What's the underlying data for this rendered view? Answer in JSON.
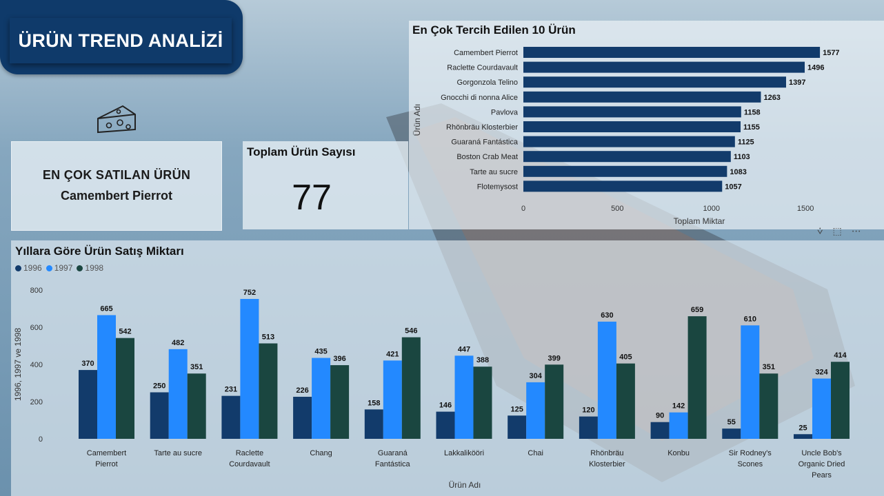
{
  "page": {
    "title": "ÜRÜN TREND ANALİZİ"
  },
  "best_seller": {
    "label": "EN ÇOK SATILAN ÜRÜN",
    "value": "Camembert Pierrot"
  },
  "product_count": {
    "label": "Toplam Ürün Sayısı",
    "value": "77"
  },
  "icons": {
    "cheese": "cheese-icon",
    "filter": "filter-icon",
    "focus": "focus-mode-icon",
    "more": "more-options-icon"
  },
  "colors": {
    "title_bg": "#0f3a6a",
    "bar_top10": "#123b6b",
    "y1996": "#123b6b",
    "y1997": "#2389ff",
    "y1998": "#1a4640"
  },
  "chart_data": [
    {
      "type": "bar",
      "orientation": "horizontal",
      "title": "En Çok Tercih Edilen 10 Ürün",
      "xlabel": "Toplam Miktar",
      "ylabel": "Ürün Adı",
      "categories": [
        "Camembert Pierrot",
        "Raclette Courdavault",
        "Gorgonzola Telino",
        "Gnocchi di nonna Alice",
        "Pavlova",
        "Rhönbräu Klosterbier",
        "Guaraná Fantástica",
        "Boston Crab Meat",
        "Tarte au sucre",
        "Flotemysost"
      ],
      "values": [
        1577,
        1496,
        1397,
        1263,
        1158,
        1155,
        1125,
        1103,
        1083,
        1057
      ],
      "xticks": [
        "0",
        "500",
        "1000",
        "1500"
      ],
      "xlim": [
        0,
        1650
      ]
    },
    {
      "type": "bar",
      "orientation": "vertical",
      "title": "Yıllara Göre Ürün Satış Miktarı",
      "xlabel": "Ürün Adı",
      "ylabel": "1996, 1997 ve 1998",
      "categories": [
        [
          "Camembert",
          "Pierrot"
        ],
        [
          "Tarte au sucre"
        ],
        [
          "Raclette",
          "Courdavault"
        ],
        [
          "Chang"
        ],
        [
          "Guaraná",
          "Fantástica"
        ],
        [
          "Lakkalikööri"
        ],
        [
          "Chai"
        ],
        [
          "Rhönbräu",
          "Klosterbier"
        ],
        [
          "Konbu"
        ],
        [
          "Sir Rodney's",
          "Scones"
        ],
        [
          "Uncle Bob's",
          "Organic Dried",
          "Pears"
        ]
      ],
      "series": [
        {
          "name": "1996",
          "values": [
            370,
            250,
            231,
            226,
            158,
            146,
            125,
            120,
            90,
            55,
            25
          ]
        },
        {
          "name": "1997",
          "values": [
            665,
            482,
            752,
            435,
            421,
            447,
            304,
            630,
            142,
            610,
            324
          ]
        },
        {
          "name": "1998",
          "values": [
            542,
            351,
            513,
            396,
            546,
            388,
            399,
            405,
            659,
            351,
            414
          ]
        }
      ],
      "yticks": [
        "0",
        "200",
        "400",
        "600",
        "800"
      ],
      "ylim": [
        0,
        800
      ],
      "legend": "top-left"
    }
  ]
}
